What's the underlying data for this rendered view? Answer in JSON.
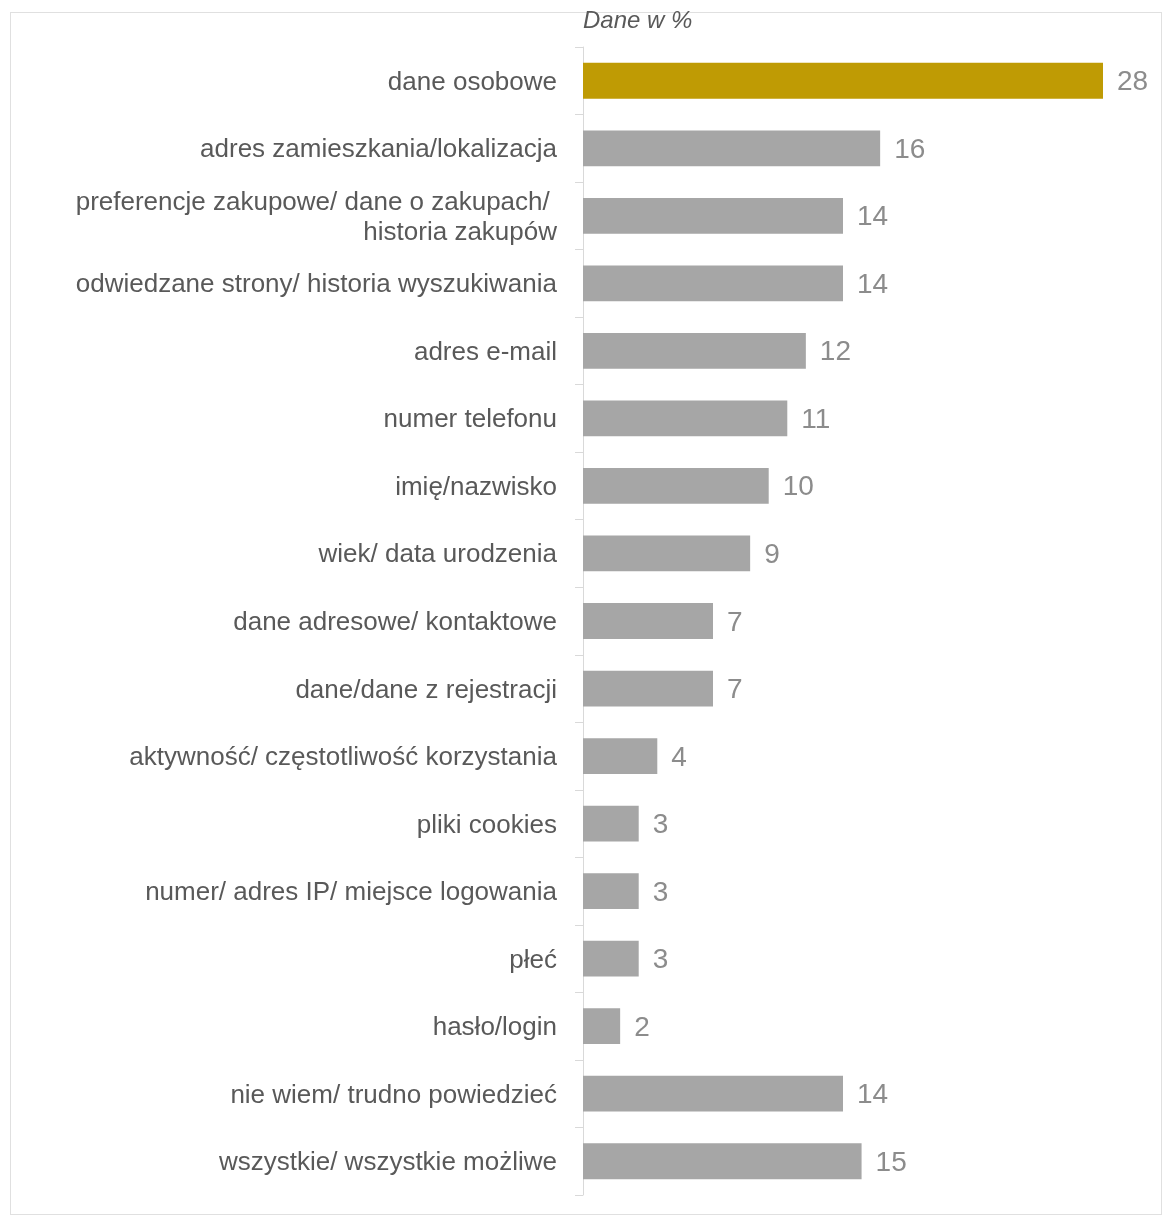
{
  "chart_data": {
    "type": "bar",
    "orientation": "horizontal",
    "subtitle": "Dane w %",
    "categories": [
      "dane osobowe",
      "adres zamieszkania/lokalizacja",
      "preferencje zakupowe/ dane o zakupach/ historia zakupów",
      "odwiedzane strony/ historia wyszukiwania",
      "adres e-mail",
      "numer telefonu",
      "imię/nazwisko",
      "wiek/ data urodzenia",
      "dane adresowe/ kontaktowe",
      "dane/dane z rejestracji",
      "aktywność/ częstotliwość korzystania",
      "pliki cookies",
      "numer/ adres IP/ miejsce logowania",
      "płeć",
      "hasło/login",
      "nie wiem/ trudno powiedzieć",
      "wszystkie/ wszystkie możliwe"
    ],
    "values": [
      28,
      16,
      14,
      14,
      12,
      11,
      10,
      9,
      7,
      7,
      4,
      3,
      3,
      3,
      2,
      14,
      15
    ],
    "colors": [
      "#bf9b04",
      "#a6a6a6",
      "#a6a6a6",
      "#a6a6a6",
      "#a6a6a6",
      "#a6a6a6",
      "#a6a6a6",
      "#a6a6a6",
      "#a6a6a6",
      "#a6a6a6",
      "#a6a6a6",
      "#a6a6a6",
      "#a6a6a6",
      "#a6a6a6",
      "#a6a6a6",
      "#a6a6a6",
      "#a6a6a6"
    ],
    "data_labels": true
  }
}
